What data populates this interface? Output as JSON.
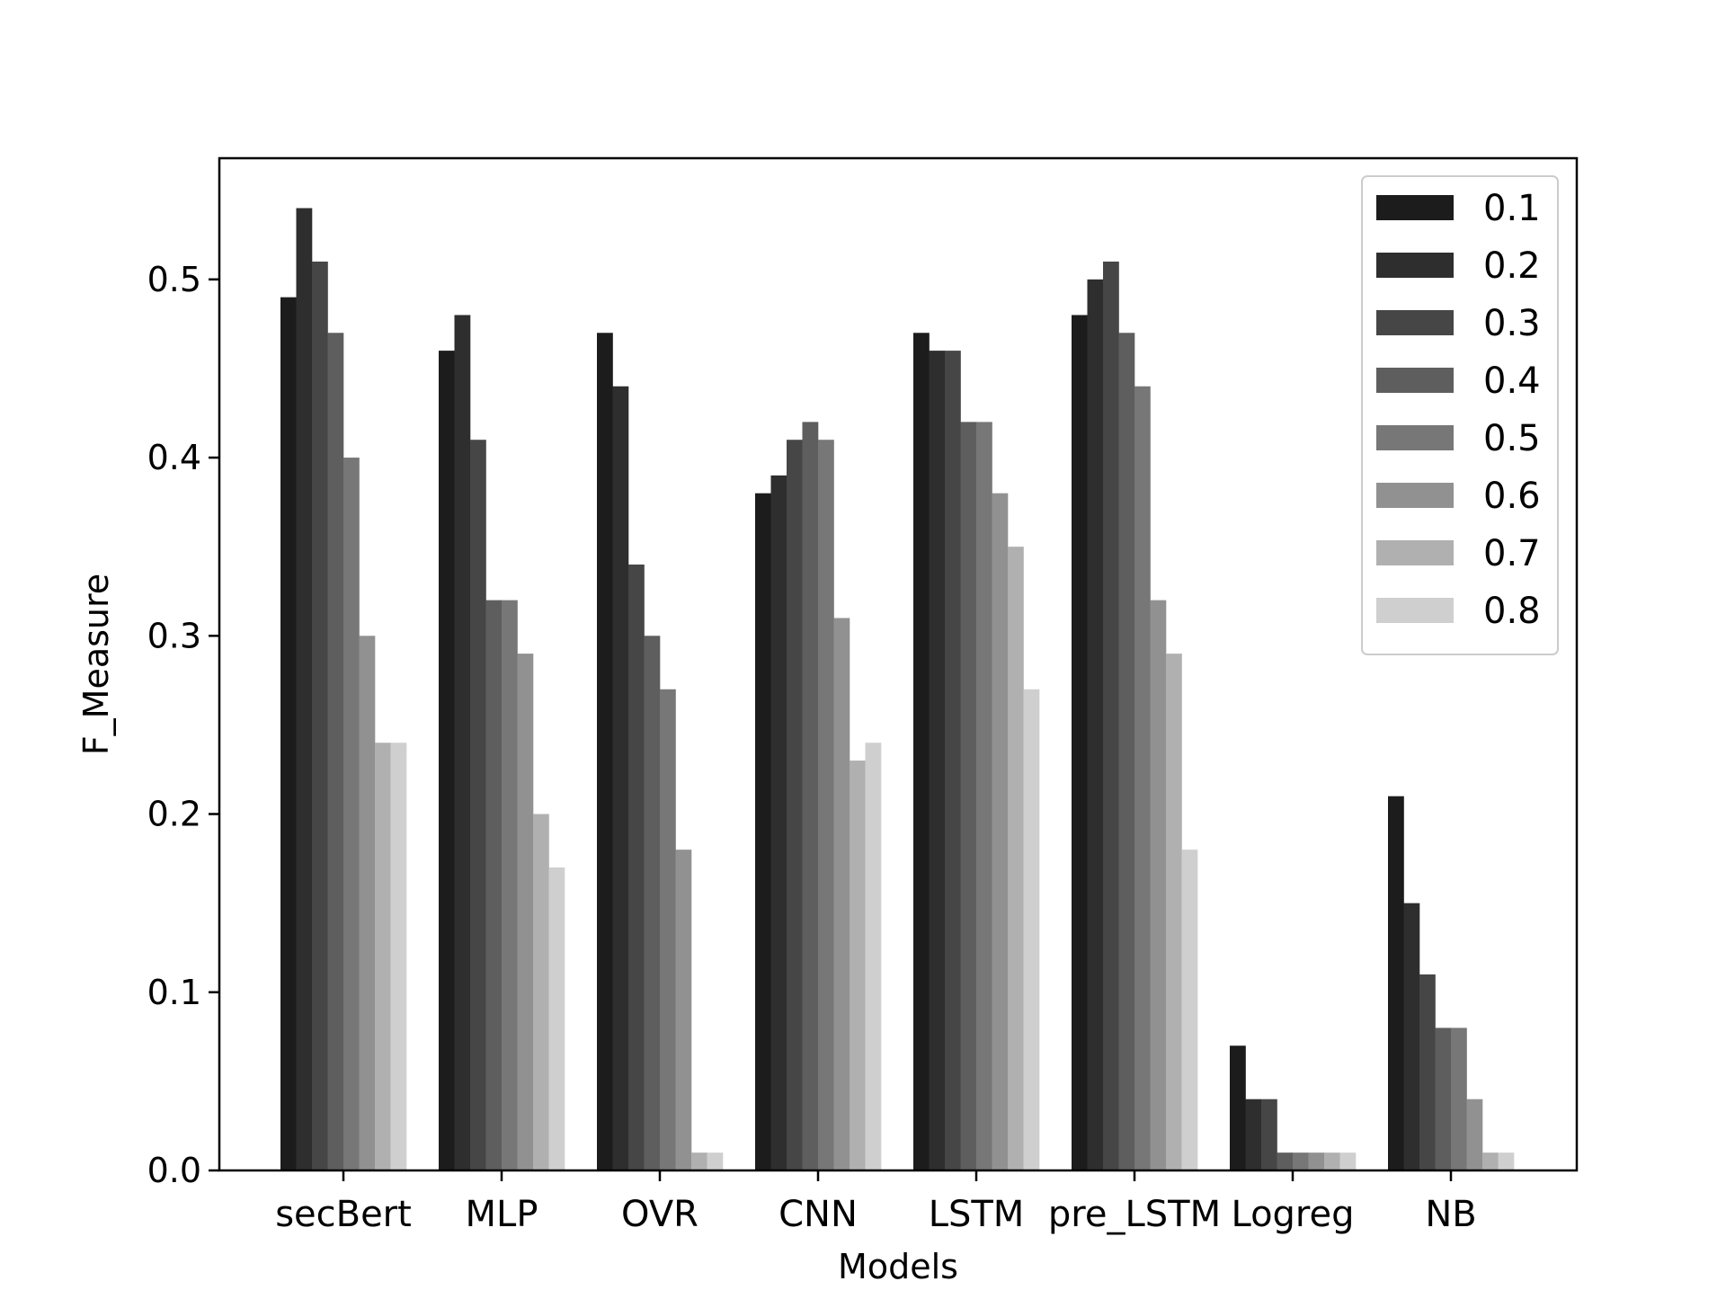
{
  "chart_data": {
    "type": "bar",
    "title": "",
    "xlabel": "Models",
    "ylabel": "F_Measure",
    "ylim": [
      0,
      0.568
    ],
    "yticks": [
      "0.0",
      "0.1",
      "0.2",
      "0.3",
      "0.4",
      "0.5"
    ],
    "grid": false,
    "legend_position": "top-right",
    "categories": [
      "secBert",
      "MLP",
      "OVR",
      "CNN",
      "LSTM",
      "pre_LSTM",
      "Logreg",
      "NB"
    ],
    "series": [
      {
        "name": "0.1",
        "color": "#1c1c1c",
        "values": [
          0.49,
          0.46,
          0.47,
          0.38,
          0.47,
          0.48,
          0.07,
          0.21
        ]
      },
      {
        "name": "0.2",
        "color": "#2e2e2e",
        "values": [
          0.54,
          0.48,
          0.44,
          0.39,
          0.46,
          0.5,
          0.04,
          0.15
        ]
      },
      {
        "name": "0.3",
        "color": "#464646",
        "values": [
          0.51,
          0.41,
          0.34,
          0.41,
          0.46,
          0.51,
          0.04,
          0.11
        ]
      },
      {
        "name": "0.4",
        "color": "#5e5e5e",
        "values": [
          0.47,
          0.32,
          0.3,
          0.42,
          0.42,
          0.47,
          0.01,
          0.08
        ]
      },
      {
        "name": "0.5",
        "color": "#777777",
        "values": [
          0.4,
          0.32,
          0.27,
          0.41,
          0.42,
          0.44,
          0.01,
          0.08
        ]
      },
      {
        "name": "0.6",
        "color": "#919191",
        "values": [
          0.3,
          0.29,
          0.18,
          0.31,
          0.38,
          0.32,
          0.01,
          0.04
        ]
      },
      {
        "name": "0.7",
        "color": "#b0b0b0",
        "values": [
          0.24,
          0.2,
          0.01,
          0.23,
          0.35,
          0.29,
          0.01,
          0.01
        ]
      },
      {
        "name": "0.8",
        "color": "#cfcfcf",
        "values": [
          0.24,
          0.17,
          0.01,
          0.24,
          0.27,
          0.18,
          0.01,
          0.01
        ]
      }
    ]
  }
}
